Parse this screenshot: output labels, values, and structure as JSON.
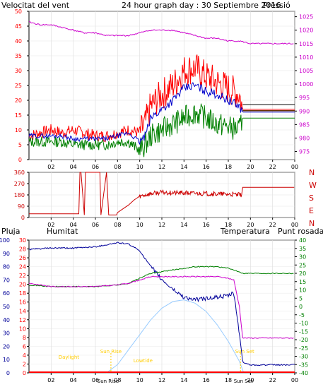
{
  "header": {
    "left_label": "Velocitat del vent",
    "title": "24 hour graph day : 30 Septiembre 2016",
    "right_label": "Pressió"
  },
  "colors": {
    "wind": "#ff0000",
    "gust_avg": "#0000cc",
    "wind_min": "#008000",
    "pressure": "#cc00cc",
    "direction": "#cc0000",
    "axis": "#000000",
    "title": "#0000aa",
    "rain": "#ff0000",
    "humidity": "#000099",
    "temperature": "#008000",
    "dewpoint": "#cc00cc",
    "sun": "#99ccff",
    "annotation": "#ffcc00"
  },
  "chart_data": [
    {
      "type": "line",
      "name": "wind-pressure",
      "title": "24 hour graph day : 30 Septiembre 2016",
      "left_axis_label": "Velocitat del vent",
      "right_axis_label": "Pressió",
      "xlim": [
        0,
        24
      ],
      "x_ticks": [
        "02",
        "04",
        "06",
        "08",
        "10",
        "12",
        "14",
        "16",
        "18",
        "20",
        "22",
        "00"
      ],
      "ylim_left": [
        0,
        50
      ],
      "y_ticks_left": [
        "0",
        "5",
        "10",
        "15",
        "20",
        "25",
        "30",
        "35",
        "40",
        "45",
        "50"
      ],
      "ylim_right": [
        972,
        1027
      ],
      "y_ticks_right": [
        "975",
        "980",
        "985",
        "990",
        "995",
        "1000",
        "1005",
        "1010",
        "1015",
        "1020",
        "1025"
      ],
      "series": [
        {
          "x": [
            0,
            1,
            2,
            3,
            4,
            5,
            6,
            7,
            8,
            9,
            10,
            10.5,
            11,
            12,
            13,
            14,
            15,
            16,
            17,
            18,
            19,
            19.3,
            24
          ],
          "values": [
            8,
            9,
            10,
            9,
            10,
            9,
            8,
            8,
            9,
            10,
            9,
            12,
            18,
            22,
            25,
            30,
            31,
            28,
            26,
            24,
            22,
            17,
            17
          ]
        },
        {
          "x": [
            0,
            1,
            2,
            3,
            4,
            5,
            6,
            7,
            8,
            9,
            10,
            10.5,
            11,
            12,
            13,
            14,
            15,
            16,
            17,
            18,
            19,
            19.3,
            24
          ],
          "values": [
            8,
            8,
            8,
            8,
            7,
            7,
            7,
            7,
            8,
            9,
            6,
            8,
            14,
            17,
            20,
            24,
            25,
            23,
            22,
            20,
            18,
            16,
            16
          ]
        },
        {
          "x": [
            0,
            1,
            2,
            3,
            4,
            5,
            6,
            7,
            8,
            9,
            10,
            10.5,
            11,
            12,
            13,
            14,
            15,
            16,
            17,
            18,
            19,
            19.3,
            24
          ],
          "values": [
            6,
            6,
            6,
            6,
            5,
            5,
            5,
            5,
            6,
            6,
            3,
            5,
            8,
            10,
            12,
            14,
            16,
            14,
            12,
            11,
            10,
            14,
            14
          ]
        },
        {
          "x": [
            0,
            1,
            2,
            3,
            4,
            5,
            6,
            7,
            8,
            9,
            10,
            11,
            12,
            13,
            14,
            15,
            16,
            17,
            18,
            19,
            20,
            21,
            22,
            23,
            24
          ],
          "values": [
            1023,
            1022,
            1022,
            1021,
            1020,
            1019,
            1019,
            1018,
            1018,
            1018,
            1019,
            1020,
            1020,
            1020,
            1019,
            1018,
            1017,
            1017,
            1016,
            1016,
            1015,
            1015,
            1015,
            1015,
            1015
          ]
        }
      ]
    },
    {
      "type": "line",
      "name": "wind-direction",
      "xlim": [
        0,
        24
      ],
      "ylim": [
        0,
        360
      ],
      "y_ticks": [
        "0",
        "90",
        "180",
        "270",
        "360"
      ],
      "right_labels": [
        "N",
        "W",
        "S",
        "E",
        "N"
      ],
      "x_ticks": [
        "02",
        "04",
        "06",
        "08",
        "10",
        "12",
        "14",
        "16",
        "18",
        "20",
        "22",
        "00"
      ],
      "series": [
        {
          "x": [
            0,
            4.5,
            4.6,
            4.7,
            5.0,
            5.1,
            6.4,
            6.5,
            7.0,
            7.2,
            7.9,
            8.0,
            9.0,
            9.5,
            10,
            11,
            12,
            14,
            16,
            18,
            19.2,
            19.3,
            24
          ],
          "values": [
            30,
            30,
            360,
            360,
            20,
            360,
            360,
            20,
            360,
            20,
            20,
            40,
            100,
            140,
            170,
            190,
            200,
            195,
            190,
            185,
            180,
            240,
            240
          ]
        }
      ]
    },
    {
      "type": "line",
      "name": "rain-humidity-temperature",
      "left_axis_label": "Pluja",
      "left2_axis_label": "Humitat",
      "right_axis_label": "Temperatura",
      "right2_axis_label": "Punt rosada",
      "xlim": [
        0,
        24
      ],
      "x_ticks": [
        "02",
        "04",
        "06",
        "08",
        "10",
        "12",
        "14",
        "16",
        "18",
        "20",
        "22",
        "00"
      ],
      "rain_ticks": [
        "0",
        "5",
        "10",
        "15",
        "20",
        "25",
        "30",
        "35",
        "40",
        "45",
        "50",
        "55",
        "60",
        "65",
        "70",
        "75",
        "80",
        "85",
        "90",
        "95",
        "100"
      ],
      "humidity_ticks": [
        "0",
        "2",
        "4",
        "6",
        "8",
        "10",
        "12",
        "14",
        "16",
        "18",
        "20",
        "22",
        "24",
        "26",
        "28",
        "30"
      ],
      "temp_ticks": [
        "-40",
        "-35",
        "-30",
        "-25",
        "-20",
        "-15",
        "-10",
        "-5",
        "0",
        "5",
        "10",
        "15",
        "20",
        "25",
        "30",
        "35",
        "40"
      ],
      "annotations": [
        "Sun Rise",
        "Sun Set",
        "Daylight",
        "Lowtide",
        "Sun Rise",
        "Sun Set"
      ],
      "series": [
        {
          "x": [
            0,
            2,
            4,
            6,
            8,
            9,
            10,
            11,
            12,
            13,
            14,
            15,
            16,
            17,
            18,
            18.5,
            19,
            19.3,
            20,
            24
          ],
          "values": [
            93,
            94,
            94,
            95,
            98,
            97,
            92,
            80,
            70,
            63,
            57,
            55,
            56,
            57,
            58,
            60,
            30,
            8,
            6,
            6
          ]
        },
        {
          "x": [
            0,
            2,
            4,
            6,
            8,
            9,
            10,
            11,
            12,
            13,
            14,
            15,
            16,
            17,
            18,
            18.5,
            19,
            19.3,
            20,
            24
          ],
          "values": [
            13,
            12,
            12,
            12,
            13,
            14,
            17,
            20,
            21,
            22,
            23,
            24,
            24,
            24,
            23,
            22,
            21,
            20,
            20,
            20
          ]
        },
        {
          "x": [
            0,
            2,
            4,
            6,
            8,
            9,
            10,
            11,
            12,
            13,
            14,
            15,
            16,
            17,
            18,
            18.5,
            19,
            19.3,
            20,
            24
          ],
          "values": [
            14,
            12,
            12,
            12,
            13,
            14,
            16,
            18,
            18,
            18,
            18,
            18,
            18,
            18,
            17,
            16,
            0,
            -19,
            -19,
            -19
          ]
        },
        {
          "x": [
            7.0,
            8,
            9,
            10,
            11,
            12,
            13,
            14,
            15,
            16,
            17,
            18,
            19,
            19.4
          ],
          "values": [
            -40,
            -35,
            -26,
            -17,
            -8,
            -1,
            3,
            4,
            2,
            -3,
            -11,
            -21,
            -33,
            -40
          ]
        },
        {
          "x": [
            0,
            24
          ],
          "values": [
            0,
            0
          ]
        }
      ]
    }
  ]
}
